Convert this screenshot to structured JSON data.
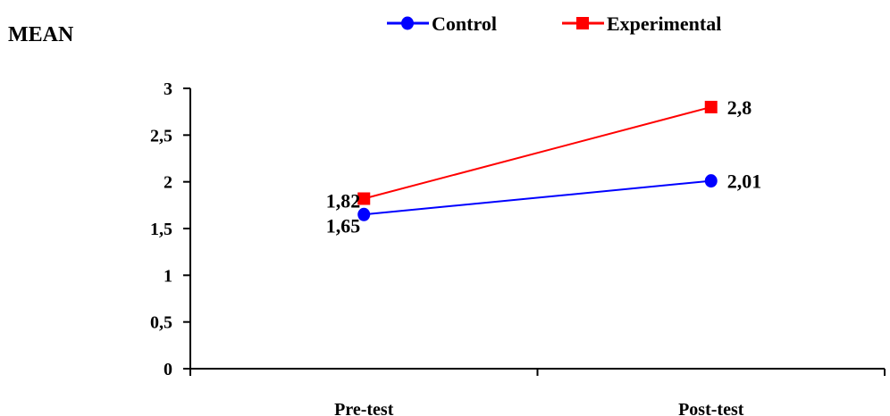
{
  "chart_data": {
    "type": "line",
    "ylabel": "MEAN",
    "categories": [
      "Pre-test",
      "Post-test"
    ],
    "ylim": [
      0,
      3
    ],
    "yticks": [
      "0",
      "0,5",
      "1",
      "1,5",
      "2",
      "2,5",
      "3"
    ],
    "yticks_values": [
      0,
      0.5,
      1,
      1.5,
      2,
      2.5,
      3
    ],
    "grid": false,
    "legend_position": "top",
    "series": [
      {
        "name": "Control",
        "values": [
          1.65,
          2.01
        ],
        "labels": [
          "1,65",
          "2,01"
        ],
        "color": "#0000ff",
        "marker": "circle"
      },
      {
        "name": "Experimental",
        "values": [
          1.82,
          2.8
        ],
        "labels": [
          "1,82",
          "2,8"
        ],
        "color": "#ff0000",
        "marker": "square"
      }
    ]
  }
}
